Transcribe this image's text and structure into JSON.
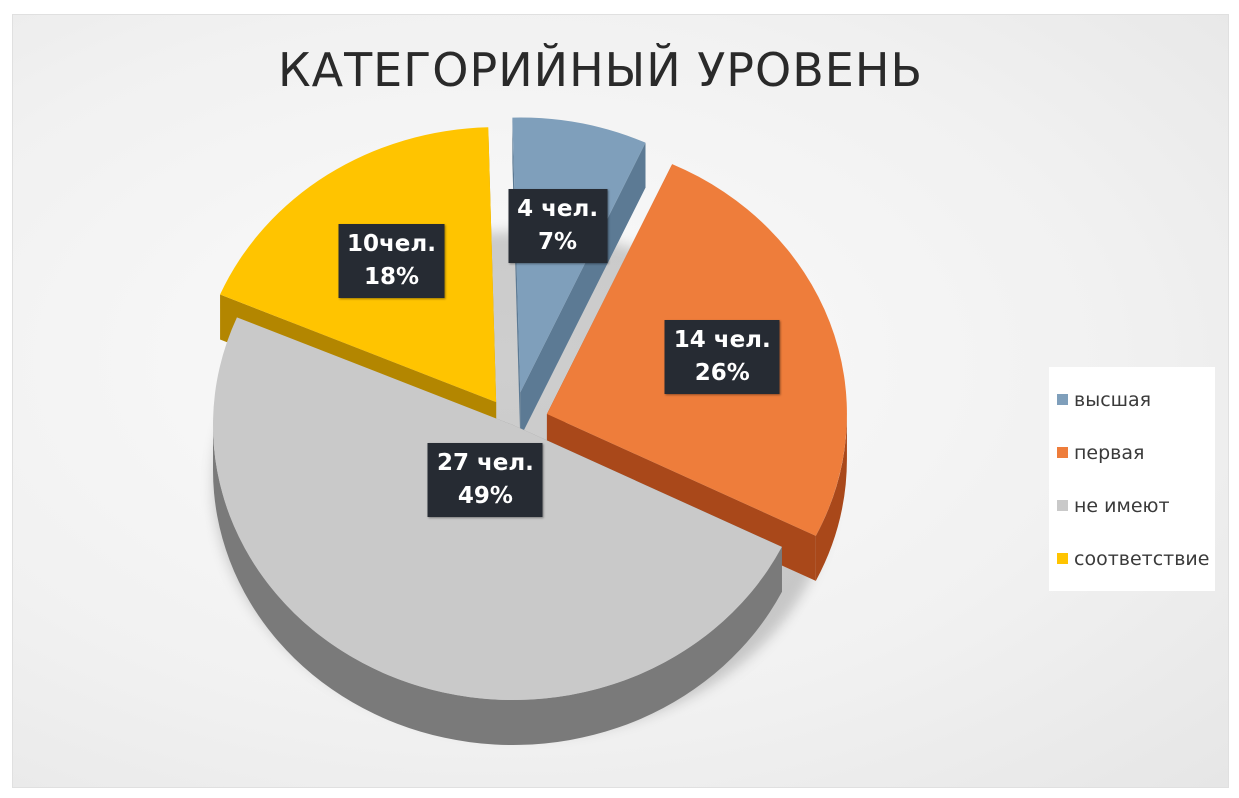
{
  "chart_data": {
    "type": "pie",
    "title": "КАТЕГОРИЙНЫЙ УРОВЕНЬ",
    "legend_position": "right",
    "slices": [
      {
        "name": "высшая",
        "value": 4,
        "count_label": "4 чел.",
        "percent_label": "7%",
        "color": "#7f9fbb",
        "side_color": "#5c7a94"
      },
      {
        "name": "первая",
        "value": 14,
        "count_label": "14 чел.",
        "percent_label": "26%",
        "color": "#ee7d3b",
        "side_color": "#a9481a"
      },
      {
        "name": "не имеют",
        "value": 27,
        "count_label": "27 чел.",
        "percent_label": "49%",
        "color": "#c9c9c9",
        "side_color": "#7a7a7a"
      },
      {
        "name": "соответствие",
        "value": 10,
        "count_label": "10чел.",
        "percent_label": "18%",
        "color": "#ffc400",
        "side_color": "#b38600"
      }
    ]
  }
}
